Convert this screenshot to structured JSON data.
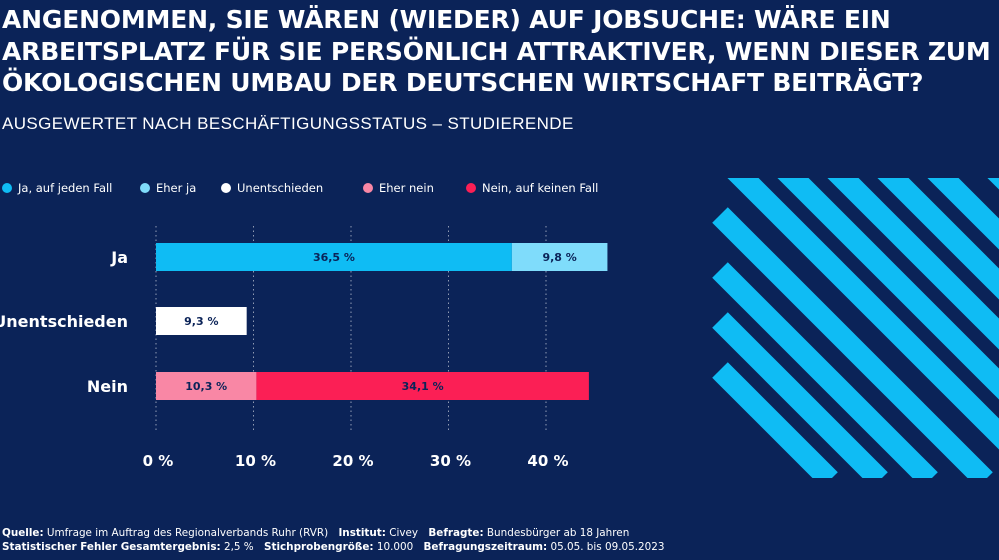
{
  "title": "Angenommen, Sie wären (wieder) auf Jobsuche: Wäre ein Arbeitsplatz für Sie persönlich attraktiver, wenn dieser zum ökologischen Umbau der deutschen Wirtschaft beiträgt?",
  "subtitle": "AUSGEWERTET NACH BESCHÄFTIGUNGSSTATUS – STUDIERENDE",
  "legend": [
    {
      "label": "Ja, auf jeden Fall",
      "color": "#0fbcf4"
    },
    {
      "label": "Eher ja",
      "color": "#7fdcfb"
    },
    {
      "label": "Unentschieden",
      "color": "#ffffff"
    },
    {
      "label": "Eher nein",
      "color": "#f987a5"
    },
    {
      "label": "Nein, auf keinen Fall",
      "color": "#fb1f55"
    }
  ],
  "chart_data": {
    "type": "bar",
    "orientation": "horizontal",
    "stacked": true,
    "categories": [
      "Ja",
      "Unentschieden",
      "Nein"
    ],
    "series": [
      {
        "name": "Ja, auf jeden Fall",
        "values": [
          36.5,
          null,
          null
        ],
        "labels": [
          "36,5 %",
          "",
          ""
        ]
      },
      {
        "name": "Eher ja",
        "values": [
          9.8,
          null,
          null
        ],
        "labels": [
          "9,8 %",
          "",
          ""
        ]
      },
      {
        "name": "Unentschieden",
        "values": [
          null,
          9.3,
          null
        ],
        "labels": [
          "",
          "9,3 %",
          ""
        ]
      },
      {
        "name": "Eher nein",
        "values": [
          null,
          null,
          10.3
        ],
        "labels": [
          "",
          "",
          "10,3 %"
        ]
      },
      {
        "name": "Nein, auf keinen Fall",
        "values": [
          null,
          null,
          34.1
        ],
        "labels": [
          "",
          "",
          "34,1 %"
        ]
      }
    ],
    "xlim": [
      0,
      45
    ],
    "xticks": [
      0,
      10,
      20,
      30,
      40
    ],
    "xtick_labels": [
      "0 %",
      "10 %",
      "20 %",
      "30 %",
      "40 %"
    ],
    "grid": "vertical dotted",
    "legend_position": "top"
  },
  "footer": {
    "line1": [
      {
        "label": "Quelle:",
        "value": "Umfrage im Auftrag des Regionalverbands Ruhr (RVR)"
      },
      {
        "label": "Institut:",
        "value": "Civey"
      },
      {
        "label": "Befragte:",
        "value": "Bundesbürger ab 18 Jahren"
      }
    ],
    "line2": [
      {
        "label": "Statistischer Fehler Gesamtergebnis:",
        "value": "2,5 %"
      },
      {
        "label": "Stichprobengröße:",
        "value": "10.000"
      },
      {
        "label": "Befragungszeitraum:",
        "value": "05.05. bis 09.05.2023"
      }
    ]
  }
}
